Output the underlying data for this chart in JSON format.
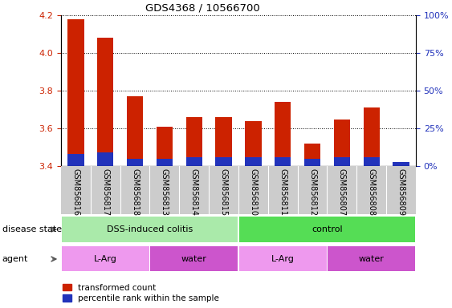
{
  "title": "GDS4368 / 10566700",
  "samples": [
    "GSM856816",
    "GSM856817",
    "GSM856818",
    "GSM856813",
    "GSM856814",
    "GSM856815",
    "GSM856810",
    "GSM856811",
    "GSM856812",
    "GSM856807",
    "GSM856808",
    "GSM856809"
  ],
  "transformed_count": [
    4.18,
    4.08,
    3.77,
    3.61,
    3.66,
    3.66,
    3.64,
    3.74,
    3.52,
    3.65,
    3.71,
    3.41
  ],
  "percentile_rank_pct": [
    8,
    9,
    5,
    5,
    6,
    6,
    6,
    6,
    5,
    6,
    6,
    3
  ],
  "bar_bottom": 3.4,
  "red_color": "#cc2200",
  "blue_color": "#2233bb",
  "ylim_left": [
    3.4,
    4.2
  ],
  "ylim_right": [
    0,
    100
  ],
  "yticks_left": [
    3.4,
    3.6,
    3.8,
    4.0,
    4.2
  ],
  "yticks_right": [
    0,
    25,
    50,
    75,
    100
  ],
  "ytick_labels_right": [
    "0%",
    "25%",
    "50%",
    "75%",
    "100%"
  ],
  "disease_state_groups": [
    {
      "label": "DSS-induced colitis",
      "start": 0,
      "end": 6,
      "color": "#aaeaaa"
    },
    {
      "label": "control",
      "start": 6,
      "end": 12,
      "color": "#55dd55"
    }
  ],
  "agent_groups": [
    {
      "label": "L-Arg",
      "start": 0,
      "end": 3,
      "color": "#ee99ee"
    },
    {
      "label": "water",
      "start": 3,
      "end": 6,
      "color": "#cc55cc"
    },
    {
      "label": "L-Arg",
      "start": 6,
      "end": 9,
      "color": "#ee99ee"
    },
    {
      "label": "water",
      "start": 9,
      "end": 12,
      "color": "#cc55cc"
    }
  ],
  "legend_labels": [
    "transformed count",
    "percentile rank within the sample"
  ],
  "disease_state_label": "disease state",
  "agent_label": "agent",
  "left_axis_color": "#cc2200",
  "right_axis_color": "#2233bb",
  "xtick_bg_color": "#cccccc",
  "xtick_label_fontsize": 7,
  "bar_width": 0.55
}
